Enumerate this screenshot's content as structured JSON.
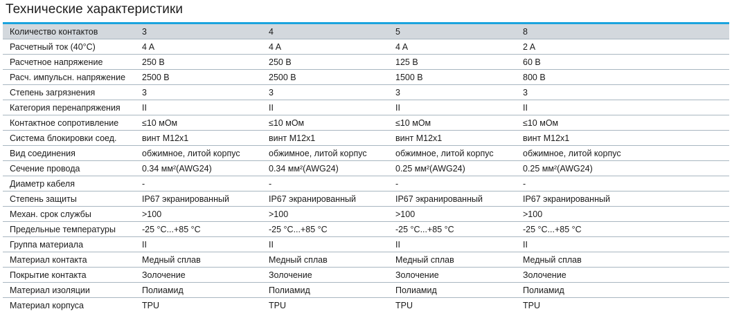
{
  "title": "Технические характеристики",
  "accent_color": "#1aa3de",
  "header_row_color": "#d3d8dd",
  "rows": [
    {
      "label": "Количество контактов",
      "values": [
        "3",
        "4",
        "5",
        "8"
      ]
    },
    {
      "label": "Расчетный ток (40°C)",
      "values": [
        "4 A",
        "4 A",
        "4 A",
        "2 A"
      ]
    },
    {
      "label": "Расчетное напряжение",
      "values": [
        "250 В",
        "250 В",
        "125 В",
        "60 В"
      ]
    },
    {
      "label": "Расч. импульсн. напряжение",
      "values": [
        "2500 В",
        "2500 В",
        "1500 В",
        "800 В"
      ]
    },
    {
      "label": "Степень загрязнения",
      "values": [
        "3",
        "3",
        "3",
        "3"
      ]
    },
    {
      "label": "Категория перенапряжения",
      "values": [
        "II",
        "II",
        "II",
        "II"
      ]
    },
    {
      "label": "Контактное сопротивление",
      "values": [
        "≤10 мОм",
        "≤10 мОм",
        "≤10 мОм",
        "≤10 мОм"
      ]
    },
    {
      "label": "Система блокировки соед.",
      "values": [
        "винт M12x1",
        "винт M12x1",
        "винт M12x1",
        "винт M12x1"
      ]
    },
    {
      "label": "Вид соединения",
      "values": [
        "обжимное, литой корпус",
        "обжимное, литой корпус",
        "обжимное, литой корпус",
        "обжимное, литой корпус"
      ]
    },
    {
      "label": "Сечение провода",
      "values": [
        "0.34 мм²(AWG24)",
        "0.34 мм²(AWG24)",
        "0.25 мм²(AWG24)",
        "0.25 мм²(AWG24)"
      ]
    },
    {
      "label": "Диаметр кабеля",
      "values": [
        "-",
        "-",
        "-",
        "-"
      ]
    },
    {
      "label": "Степень защиты",
      "values": [
        "IP67 экранированный",
        "IP67 экранированный",
        "IP67 экранированный",
        "IP67 экранированный"
      ]
    },
    {
      "label": "Механ. срок службы",
      "values": [
        ">100",
        ">100",
        ">100",
        ">100"
      ]
    },
    {
      "label": "Предельные температуры",
      "values": [
        "-25 °C...+85 °C",
        "-25 °C...+85 °C",
        "-25 °C...+85 °C",
        "-25 °C...+85 °C"
      ]
    },
    {
      "label": "Группа материала",
      "values": [
        "II",
        "II",
        "II",
        "II"
      ]
    },
    {
      "label": "Материал контакта",
      "values": [
        "Медный сплав",
        "Медный сплав",
        "Медный сплав",
        "Медный сплав"
      ]
    },
    {
      "label": "Покрытие контакта",
      "values": [
        "Золочение",
        "Золочение",
        "Золочение",
        "Золочение"
      ]
    },
    {
      "label": "Материал изоляции",
      "values": [
        "Полиамид",
        "Полиамид",
        "Полиамид",
        "Полиамид"
      ]
    },
    {
      "label": "Материал корпуса",
      "values": [
        "TPU",
        "TPU",
        "TPU",
        "TPU"
      ]
    }
  ]
}
